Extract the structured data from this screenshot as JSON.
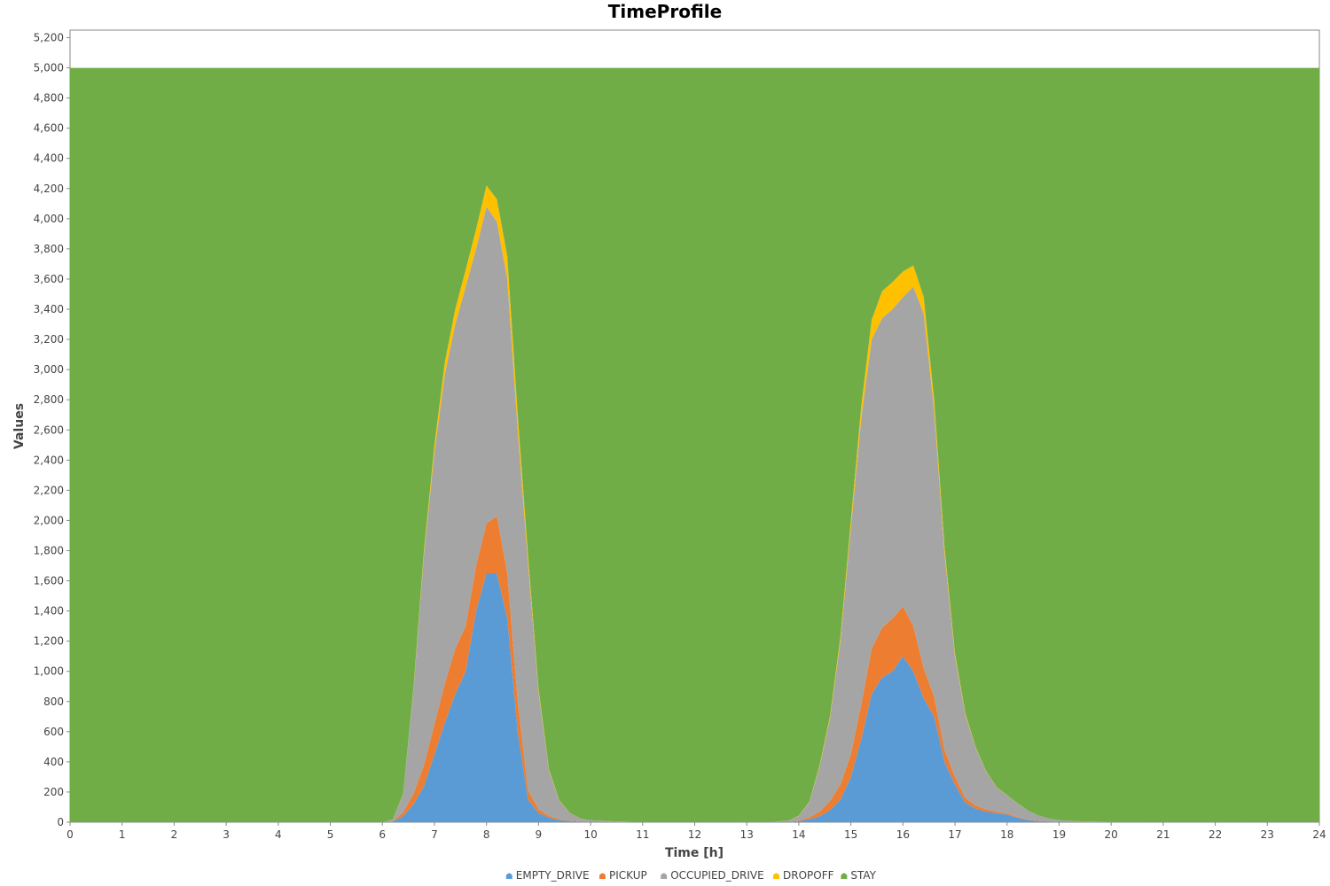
{
  "chart_data": {
    "type": "area",
    "stacked": true,
    "title": "TimeProfile",
    "xlabel": "Time [h]",
    "ylabel": "Values",
    "xlim": [
      0,
      24
    ],
    "ylim": [
      0,
      5250
    ],
    "x_ticks": [
      "0",
      "1",
      "2",
      "3",
      "4",
      "5",
      "6",
      "7",
      "8",
      "9",
      "10",
      "11",
      "12",
      "13",
      "14",
      "15",
      "16",
      "17",
      "18",
      "19",
      "20",
      "21",
      "22",
      "23",
      "24"
    ],
    "y_ticks": [
      "0",
      "200",
      "400",
      "600",
      "800",
      "1,000",
      "1,200",
      "1,400",
      "1,600",
      "1,800",
      "2,000",
      "2,200",
      "2,400",
      "2,600",
      "2,800",
      "3,000",
      "3,200",
      "3,400",
      "3,600",
      "3,800",
      "4,000",
      "4,200",
      "4,400",
      "4,600",
      "4,800",
      "5,000",
      "5,200"
    ],
    "legend_position": "bottom",
    "x": [
      0,
      6.0,
      6.2,
      6.4,
      6.6,
      6.8,
      7.0,
      7.2,
      7.4,
      7.6,
      7.8,
      8.0,
      8.2,
      8.4,
      8.6,
      8.8,
      9.0,
      9.2,
      9.4,
      9.6,
      9.8,
      10.0,
      10.5,
      11.0,
      13.5,
      13.8,
      14.0,
      14.2,
      14.4,
      14.6,
      14.8,
      15.0,
      15.2,
      15.4,
      15.6,
      15.8,
      16.0,
      16.2,
      16.4,
      16.6,
      16.8,
      17.0,
      17.2,
      17.4,
      17.6,
      17.8,
      18.0,
      18.2,
      18.4,
      18.6,
      18.8,
      19.0,
      19.5,
      20.0,
      21.0,
      24
    ],
    "series": [
      {
        "name": "EMPTY_DRIVE",
        "color": "#5b9bd5",
        "values": [
          0,
          0,
          5,
          40,
          120,
          240,
          450,
          660,
          850,
          1000,
          1400,
          1650,
          1650,
          1350,
          600,
          150,
          60,
          30,
          15,
          8,
          4,
          2,
          0,
          0,
          0,
          2,
          8,
          20,
          40,
          80,
          150,
          300,
          550,
          850,
          960,
          1000,
          1100,
          1000,
          820,
          700,
          400,
          250,
          130,
          90,
          70,
          60,
          50,
          30,
          15,
          8,
          5,
          3,
          1,
          0,
          0,
          0
        ]
      },
      {
        "name": "PICKUP",
        "color": "#ed7d31",
        "values": [
          0,
          0,
          3,
          25,
          70,
          140,
          200,
          260,
          300,
          300,
          300,
          330,
          380,
          300,
          200,
          60,
          25,
          12,
          6,
          3,
          2,
          1,
          0,
          0,
          0,
          1,
          4,
          12,
          30,
          60,
          100,
          150,
          230,
          300,
          330,
          350,
          330,
          300,
          200,
          130,
          80,
          50,
          30,
          20,
          15,
          10,
          8,
          5,
          3,
          2,
          1,
          0,
          0,
          0,
          0,
          0
        ]
      },
      {
        "name": "OCCUPIED_DRIVE",
        "color": "#a5a5a5",
        "values": [
          0,
          0,
          10,
          120,
          700,
          1400,
          1800,
          2050,
          2150,
          2250,
          2100,
          2100,
          1950,
          1950,
          1800,
          1500,
          780,
          300,
          120,
          50,
          20,
          10,
          5,
          0,
          2,
          8,
          30,
          100,
          300,
          550,
          950,
          1500,
          1900,
          2050,
          2050,
          2050,
          2050,
          2250,
          2350,
          1900,
          1300,
          800,
          550,
          380,
          250,
          160,
          120,
          90,
          60,
          35,
          20,
          10,
          4,
          2,
          1,
          0
        ]
      },
      {
        "name": "DROPOFF",
        "color": "#ffc000",
        "values": [
          0,
          0,
          0,
          3,
          10,
          25,
          50,
          80,
          100,
          110,
          130,
          140,
          150,
          150,
          100,
          50,
          20,
          8,
          3,
          1,
          0,
          0,
          0,
          0,
          0,
          0,
          1,
          3,
          8,
          15,
          30,
          50,
          80,
          130,
          180,
          180,
          170,
          140,
          110,
          70,
          40,
          20,
          10,
          5,
          3,
          2,
          1,
          1,
          0,
          0,
          0,
          0,
          0,
          0,
          0,
          0
        ]
      },
      {
        "name": "STAY",
        "color": "#70ad47",
        "values": [
          5000,
          5000,
          4982,
          4812,
          4100,
          3195,
          2500,
          1950,
          1600,
          1340,
          1070,
          780,
          870,
          1250,
          2300,
          3240,
          4115,
          4650,
          4856,
          4938,
          4974,
          4987,
          4995,
          5000,
          4998,
          4989,
          4957,
          4865,
          4622,
          4295,
          3770,
          3000,
          2240,
          1670,
          1480,
          1420,
          1350,
          1310,
          1520,
          2200,
          3180,
          3880,
          4280,
          4505,
          4662,
          4768,
          4821,
          4874,
          4922,
          4955,
          4974,
          4987,
          4995,
          4998,
          4999,
          5000
        ]
      }
    ]
  }
}
